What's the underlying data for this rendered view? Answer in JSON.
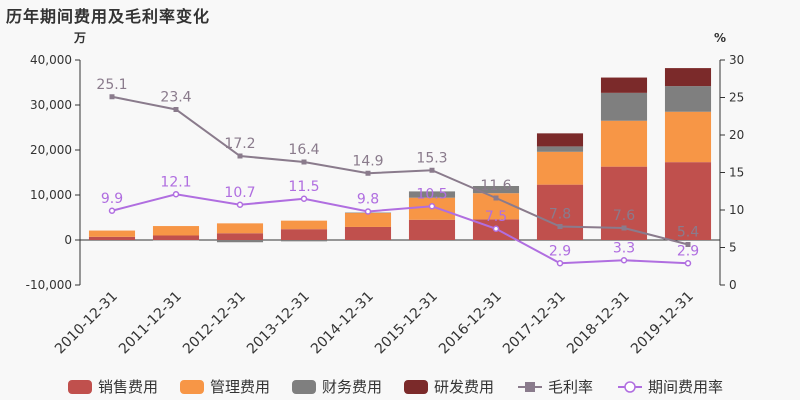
{
  "chart_data": {
    "type": "bar",
    "title": "历年期间费用及毛利率变化",
    "left_unit": "万",
    "right_unit": "%",
    "categories": [
      "2010-12-31",
      "2011-12-31",
      "2012-12-31",
      "2013-12-31",
      "2014-12-31",
      "2015-12-31",
      "2016-12-31",
      "2017-12-31",
      "2018-12-31",
      "2019-12-31"
    ],
    "left_axis": {
      "ylim": [
        -10000,
        40000
      ],
      "ticks": [
        "-10,000",
        "0",
        "10,000",
        "20,000",
        "30,000",
        "40,000"
      ]
    },
    "right_axis": {
      "ylim": [
        0,
        30
      ],
      "ticks": [
        "0",
        "5",
        "10",
        "15",
        "20",
        "25",
        "30"
      ]
    },
    "bar_series": [
      {
        "name": "销售费用",
        "color": "#c0504d",
        "values": [
          700,
          1000,
          1500,
          2400,
          2900,
          4500,
          4600,
          12300,
          16300,
          17300
        ]
      },
      {
        "name": "管理费用",
        "color": "#f79646",
        "values": [
          1400,
          2100,
          2200,
          1900,
          3100,
          4900,
          5800,
          7300,
          10200,
          11200
        ]
      },
      {
        "name": "财务费用",
        "color": "#7f7f7f",
        "values": [
          0,
          -100,
          -500,
          -300,
          100,
          1400,
          1600,
          1200,
          6200,
          5700
        ]
      },
      {
        "name": "研发费用",
        "color": "#7b2a2a",
        "values": [
          0,
          0,
          0,
          0,
          0,
          0,
          0,
          2900,
          3400,
          4000
        ]
      }
    ],
    "line_series": [
      {
        "name": "毛利率",
        "color": "#8a7b8c",
        "marker": "square",
        "values": [
          25.1,
          23.4,
          17.2,
          16.4,
          14.9,
          15.3,
          11.6,
          7.8,
          7.6,
          5.4
        ],
        "labels": [
          "25.1",
          "23.4",
          "17.2",
          "16.4",
          "14.9",
          "15.3",
          "11.6",
          "7.8",
          "7.6",
          "5.4"
        ]
      },
      {
        "name": "期间费用率",
        "color": "#b06ee0",
        "marker": "circle",
        "values": [
          9.9,
          12.1,
          10.7,
          11.5,
          9.8,
          10.5,
          7.5,
          2.9,
          3.3,
          2.9
        ],
        "labels": [
          "9.9",
          "12.1",
          "10.7",
          "11.5",
          "9.8",
          "10.5",
          "7.5",
          "2.9",
          "3.3",
          "2.9"
        ]
      }
    ],
    "legend_position": "bottom",
    "grid": false
  }
}
